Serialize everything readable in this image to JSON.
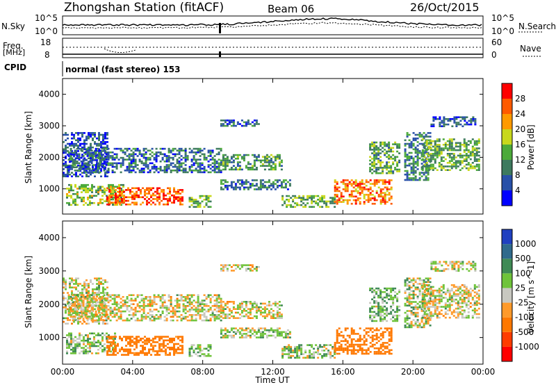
{
  "header": {
    "title": "Zhongshan Station (fitACF)",
    "beam": "Beam 06",
    "date": "26/Oct/2015"
  },
  "nsky_panel": {
    "left_label": "N.Sky",
    "left_ticks": [
      "10^5",
      "10^0"
    ],
    "right_label": "N.Search",
    "right_ticks": [
      "10^5",
      "10^0"
    ]
  },
  "freq_panel": {
    "left_label_1": "Freq.",
    "left_label_2": "[MHz]",
    "left_ticks": [
      "18",
      "8"
    ],
    "right_label": "Nave",
    "right_ticks": [
      "60",
      "0"
    ]
  },
  "cpid": {
    "label": "CPID",
    "text": "normal (fast stereo) 153"
  },
  "chart_data": {
    "type": "heatmap",
    "x_axis": {
      "label": "Time UT",
      "range_hours": [
        0,
        24
      ],
      "ticks": [
        "00:00",
        "04:00",
        "08:00",
        "12:00",
        "16:00",
        "20:00",
        "00:00"
      ]
    },
    "y_axis": {
      "label": "Slant Range [km]",
      "range": [
        200,
        4500
      ],
      "ticks": [
        "1000",
        "2000",
        "3000",
        "4000"
      ]
    },
    "power": {
      "colorbar_label": "Power [dB]",
      "colorbar_ticks": [
        "4",
        "8",
        "12",
        "16",
        "20",
        "24",
        "28"
      ],
      "range": [
        0,
        32
      ],
      "colors": [
        "#0000ff",
        "#2850a8",
        "#3d7a5e",
        "#4caa3a",
        "#c8d81c",
        "#ff9a00",
        "#ff5a00",
        "#ff0000"
      ],
      "echo_regions": [
        {
          "t": [
            0.0,
            2.6
          ],
          "r": [
            1400,
            2800
          ],
          "db": 6
        },
        {
          "t": [
            0.3,
            9.0
          ],
          "r": [
            1500,
            2300
          ],
          "db": 8
        },
        {
          "t": [
            0.2,
            3.5
          ],
          "r": [
            500,
            1150
          ],
          "db": 15
        },
        {
          "t": [
            2.5,
            6.8
          ],
          "r": [
            500,
            1050
          ],
          "db": 26
        },
        {
          "t": [
            7.2,
            8.4
          ],
          "r": [
            450,
            800
          ],
          "db": 14
        },
        {
          "t": [
            9.0,
            11.2
          ],
          "r": [
            3000,
            3200
          ],
          "db": 7
        },
        {
          "t": [
            9.0,
            12.5
          ],
          "r": [
            1600,
            2100
          ],
          "db": 12
        },
        {
          "t": [
            9.0,
            13.0
          ],
          "r": [
            1000,
            1300
          ],
          "db": 9
        },
        {
          "t": [
            12.5,
            15.5
          ],
          "r": [
            400,
            800
          ],
          "db": 14
        },
        {
          "t": [
            15.5,
            18.8
          ],
          "r": [
            500,
            1300
          ],
          "db": 24
        },
        {
          "t": [
            17.5,
            19.2
          ],
          "r": [
            1500,
            2500
          ],
          "db": 13
        },
        {
          "t": [
            19.5,
            21.0
          ],
          "r": [
            1300,
            2800
          ],
          "db": 10
        },
        {
          "t": [
            20.5,
            23.8
          ],
          "r": [
            1600,
            2600
          ],
          "db": 14
        },
        {
          "t": [
            21.0,
            23.5
          ],
          "r": [
            3000,
            3300
          ],
          "db": 6
        }
      ]
    },
    "velocity": {
      "colorbar_label": "Velocity [m s^-1]",
      "colorbar_ticks": [
        "1000",
        "500",
        "100",
        "25",
        "-25",
        "-100",
        "-500",
        "-1000"
      ],
      "colors": [
        "#2040c0",
        "#306a8c",
        "#3f8a55",
        "#6fc33a",
        "#c8c8c0",
        "#ff9a2a",
        "#ff7800",
        "#ff3c00",
        "#ff0000"
      ],
      "echo_regions": [
        {
          "t": [
            0.0,
            2.6
          ],
          "r": [
            1400,
            2800
          ],
          "v": 0
        },
        {
          "t": [
            0.3,
            9.0
          ],
          "r": [
            1500,
            2300
          ],
          "v": 0
        },
        {
          "t": [
            0.2,
            3.0
          ],
          "r": [
            500,
            1150
          ],
          "v": 60
        },
        {
          "t": [
            2.5,
            6.8
          ],
          "r": [
            500,
            1050
          ],
          "v": -200
        },
        {
          "t": [
            7.2,
            8.4
          ],
          "r": [
            450,
            800
          ],
          "v": 80
        },
        {
          "t": [
            9.0,
            11.2
          ],
          "r": [
            3000,
            3200
          ],
          "v": 0
        },
        {
          "t": [
            9.0,
            12.5
          ],
          "r": [
            1600,
            2100
          ],
          "v": 0
        },
        {
          "t": [
            9.0,
            13.0
          ],
          "r": [
            1000,
            1300
          ],
          "v": 30
        },
        {
          "t": [
            12.5,
            15.5
          ],
          "r": [
            400,
            800
          ],
          "v": 60
        },
        {
          "t": [
            15.5,
            18.8
          ],
          "r": [
            500,
            1300
          ],
          "v": -250
        },
        {
          "t": [
            17.5,
            19.2
          ],
          "r": [
            1500,
            2500
          ],
          "v": 80
        },
        {
          "t": [
            19.5,
            21.0
          ],
          "r": [
            1300,
            2800
          ],
          "v": 40
        },
        {
          "t": [
            20.5,
            23.8
          ],
          "r": [
            1600,
            2600
          ],
          "v": 0
        },
        {
          "t": [
            21.0,
            23.5
          ],
          "r": [
            3000,
            3300
          ],
          "v": 0
        }
      ]
    }
  }
}
